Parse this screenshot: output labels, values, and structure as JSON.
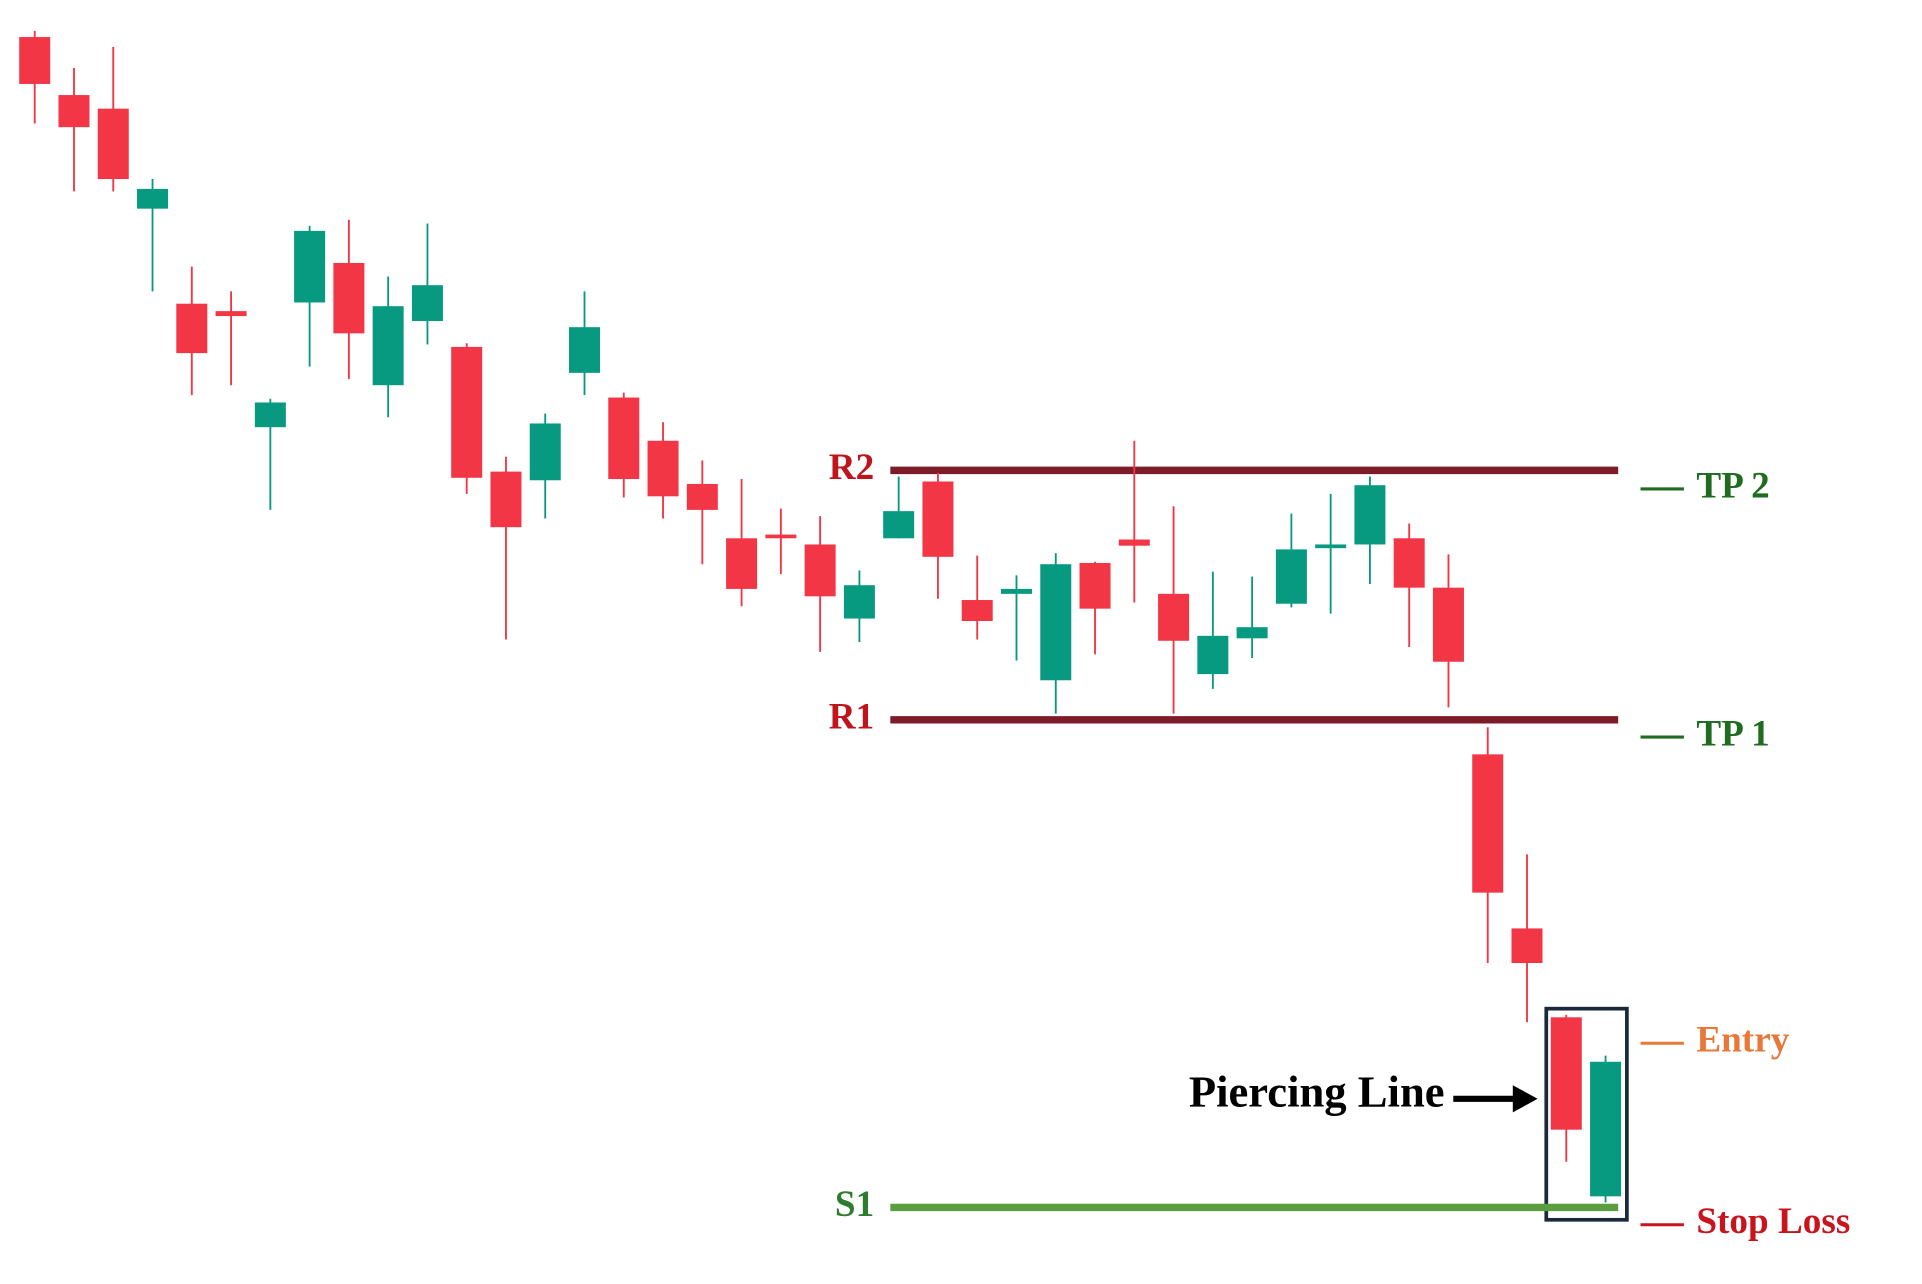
{
  "chart_data": {
    "type": "candlestick",
    "up_color": "#089981",
    "down_color": "#f23645",
    "ylim": [
      0,
      1040
    ],
    "open": [
      1010,
      963,
      952,
      871,
      794,
      788,
      694,
      795,
      827,
      728,
      780,
      759,
      658,
      651,
      738,
      718,
      683,
      648,
      604,
      607,
      599,
      539,
      604,
      650,
      554,
      559,
      489,
      584,
      603,
      559,
      494,
      523,
      551,
      596,
      599,
      604,
      564,
      429,
      288,
      216,
      71
    ],
    "high": [
      1015,
      985,
      1002,
      895,
      824,
      804,
      717,
      857,
      862,
      816,
      859,
      762,
      670,
      705,
      804,
      722,
      698,
      667,
      652,
      628,
      622,
      578,
      654,
      657,
      590,
      574,
      592,
      585,
      683,
      630,
      577,
      573,
      624,
      640,
      654,
      616,
      591,
      451,
      348,
      218,
      185
    ],
    "low": [
      940,
      885,
      885,
      804,
      720,
      728,
      627,
      743,
      733,
      702,
      761,
      640,
      522,
      620,
      720,
      637,
      620,
      583,
      549,
      575,
      512,
      520,
      604,
      555,
      522,
      505,
      462,
      510,
      552,
      462,
      482,
      507,
      548,
      543,
      567,
      516,
      467,
      260,
      212,
      99,
      66
    ],
    "close": [
      972,
      937,
      895,
      887,
      754,
      784,
      714,
      853,
      770,
      792,
      809,
      653,
      613,
      697,
      775,
      652,
      638,
      627,
      563,
      604,
      557,
      566,
      626,
      589,
      537,
      563,
      583,
      547,
      598,
      521,
      525,
      532,
      595,
      599,
      647,
      564,
      504,
      317,
      260,
      125,
      180
    ],
    "levels": [
      {
        "name": "R2",
        "value": 659,
        "color": "#7b1c28"
      },
      {
        "name": "R1",
        "value": 457,
        "color": "#7b1c28"
      },
      {
        "name": "S1",
        "value": 62,
        "color": "#5a9e40"
      }
    ],
    "targets": [
      {
        "label": "TP 2",
        "value": 644,
        "color": "#1f6b1f"
      },
      {
        "label": "TP 1",
        "value": 443,
        "color": "#1f6b1f"
      },
      {
        "label": "Entry",
        "value": 195,
        "color": "#e8783a"
      },
      {
        "label": "Stop Loss",
        "value": 48,
        "color": "#c8141c"
      }
    ],
    "annotation": "Piercing Line"
  }
}
